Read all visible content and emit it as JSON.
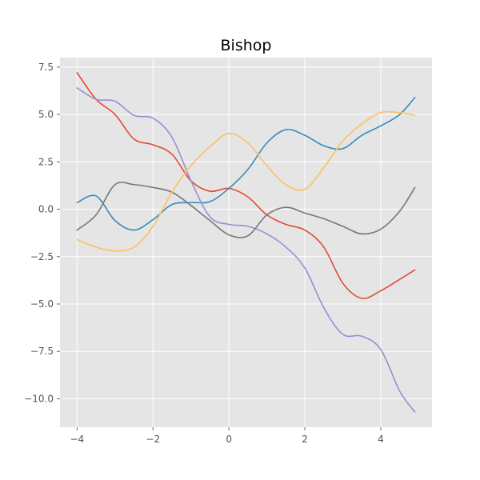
{
  "chart_data": {
    "type": "line",
    "title": "Bishop",
    "xlabel": "",
    "ylabel": "",
    "xlim": [
      -4.45,
      5.35
    ],
    "ylim": [
      -11.5,
      8.0
    ],
    "xticks": [
      -4,
      -2,
      0,
      2,
      4
    ],
    "yticks": [
      7.5,
      5.0,
      2.5,
      0.0,
      -2.5,
      -5.0,
      -7.5,
      -10.0
    ],
    "xtick_labels": [
      "−4",
      "−2",
      "0",
      "2",
      "4"
    ],
    "ytick_labels": [
      "7.5",
      "5.0",
      "2.5",
      "0.0",
      "−2.5",
      "−5.0",
      "−7.5",
      "−10.0"
    ],
    "grid": true,
    "background": "#e5e5e5",
    "x": [
      -4.0,
      -3.5,
      -3.0,
      -2.5,
      -2.0,
      -1.5,
      -1.0,
      -0.5,
      0.0,
      0.5,
      1.0,
      1.5,
      2.0,
      2.5,
      3.0,
      3.5,
      4.0,
      4.5,
      4.9
    ],
    "series": [
      {
        "color": "#e24a33",
        "values": [
          7.2,
          5.8,
          5.0,
          3.7,
          3.4,
          2.9,
          1.5,
          0.95,
          1.1,
          0.65,
          -0.3,
          -0.8,
          -1.1,
          -2.0,
          -3.9,
          -4.7,
          -4.3,
          -3.7,
          -3.2
        ]
      },
      {
        "color": "#348abd",
        "values": [
          0.35,
          0.7,
          -0.6,
          -1.1,
          -0.55,
          0.25,
          0.35,
          0.4,
          1.1,
          2.1,
          3.5,
          4.2,
          3.9,
          3.35,
          3.2,
          3.9,
          4.4,
          5.0,
          5.9
        ]
      },
      {
        "color": "#988ed5",
        "values": [
          6.4,
          5.8,
          5.7,
          4.95,
          4.8,
          3.8,
          1.5,
          -0.4,
          -0.8,
          -0.9,
          -1.3,
          -2.0,
          -3.1,
          -5.2,
          -6.6,
          -6.7,
          -7.4,
          -9.6,
          -10.7
        ]
      },
      {
        "color": "#777777",
        "values": [
          -1.1,
          -0.3,
          1.3,
          1.3,
          1.15,
          0.9,
          0.2,
          -0.6,
          -1.35,
          -1.4,
          -0.3,
          0.1,
          -0.2,
          -0.5,
          -0.9,
          -1.3,
          -1.05,
          -0.1,
          1.15
        ]
      },
      {
        "color": "#fbc15e",
        "values": [
          -1.6,
          -2.0,
          -2.2,
          -2.0,
          -0.9,
          0.9,
          2.3,
          3.3,
          4.0,
          3.5,
          2.3,
          1.3,
          1.05,
          2.2,
          3.6,
          4.5,
          5.1,
          5.1,
          4.95
        ]
      }
    ]
  }
}
